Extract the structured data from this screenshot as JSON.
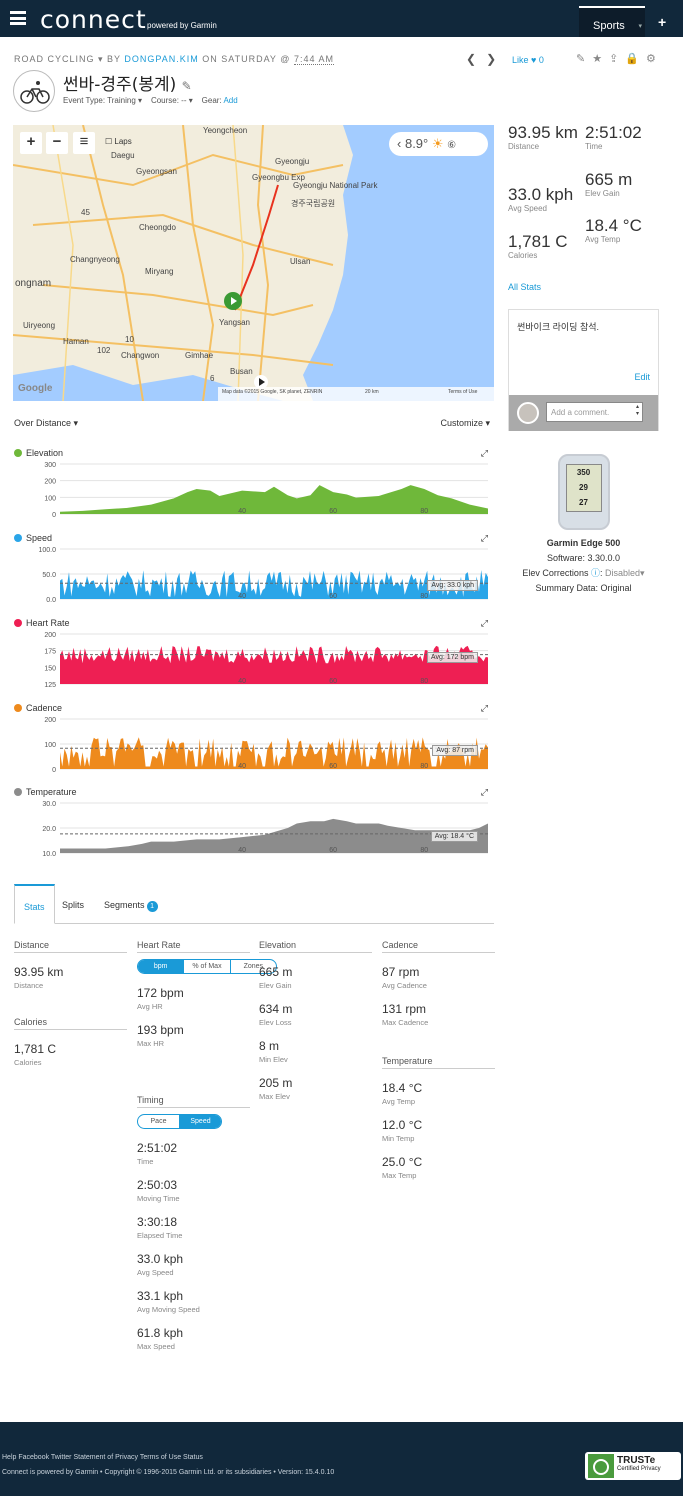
{
  "header": {
    "logo": "connect",
    "logo_sub": "powered by Garmin",
    "sports_tab": "Sports",
    "plus": "+"
  },
  "activity": {
    "type": "ROAD CYCLING",
    "by": "BY",
    "user": "DONGPAN.KIM",
    "on": "ON SATURDAY @",
    "time": "7:44 AM",
    "title": "썬바-경주(봉계)",
    "event_type_label": "Event Type: Training",
    "course_label": "Course: --",
    "gear_label": "Gear:",
    "gear_add": "Add",
    "like_label": "Like",
    "like_count": "0"
  },
  "map": {
    "weather_temp": "8.9°",
    "laps_label": "Laps",
    "attribution": "Map data ©2015 Google, SK planet, ZENRIN",
    "scale": "20 km",
    "terms": "Terms of Use",
    "google": "Google",
    "places": [
      "Yeongcheon",
      "Gyeongju",
      "Daegu",
      "Gyeongsan",
      "Gyeongju National Park",
      "경주국립공원",
      "Cheongdo",
      "Changnyeong",
      "Miryang",
      "Ulsan",
      "ongnam",
      "Yangsan",
      "Uiryeong",
      "Haman",
      "Changwon",
      "Gimhae",
      "Busan",
      "45",
      "10",
      "102",
      "6",
      "Gyeongbu Exp"
    ]
  },
  "summary": {
    "distance": {
      "value": "93.95 km",
      "label": "Distance"
    },
    "time": {
      "value": "2:51:02",
      "label": "Time"
    },
    "avg_speed": {
      "value": "33.0 kph",
      "label": "Avg Speed"
    },
    "elev_gain": {
      "value": "665 m",
      "label": "Elev Gain"
    },
    "calories": {
      "value": "1,781 C",
      "label": "Calories"
    },
    "avg_temp": {
      "value": "18.4 °C",
      "label": "Avg Temp"
    },
    "all_stats": "All Stats"
  },
  "comment": {
    "text": "썬바이크 라이딩 참석.",
    "edit": "Edit",
    "placeholder": "Add a comment."
  },
  "device": {
    "name": "Garmin Edge 500",
    "software": "Software: 3.30.0.0",
    "elev_corrections_label": "Elev Corrections",
    "elev_corrections_value": "Disabled",
    "summary_data": "Summary Data: Original",
    "screen_lines": [
      "350",
      "29",
      "27"
    ]
  },
  "charts_header": {
    "over": "Over Distance",
    "customize": "Customize"
  },
  "chart_data": [
    {
      "type": "area",
      "title": "Elevation",
      "color": "#6fb83a",
      "yticks": [
        "300",
        "200",
        "100",
        "0"
      ],
      "ylim": [
        0,
        320
      ],
      "xticks": [
        "40",
        "60",
        "80"
      ],
      "x_range": [
        0,
        94
      ],
      "x": [
        0,
        5,
        10,
        15,
        20,
        25,
        28,
        30,
        33,
        35,
        40,
        45,
        47,
        50,
        52,
        55,
        57,
        60,
        63,
        65,
        70,
        75,
        77,
        80,
        83,
        86,
        90,
        94
      ],
      "y": [
        15,
        20,
        30,
        40,
        60,
        100,
        140,
        160,
        150,
        115,
        150,
        140,
        175,
        120,
        100,
        120,
        185,
        140,
        125,
        105,
        115,
        160,
        185,
        160,
        120,
        100,
        60,
        35
      ]
    },
    {
      "type": "area",
      "title": "Speed",
      "color": "#2aa5e8",
      "yticks": [
        "100.0",
        "50.0",
        "0.0"
      ],
      "ylim": [
        0,
        105
      ],
      "xticks": [
        "40",
        "60",
        "80"
      ],
      "x_range": [
        0,
        94
      ],
      "avg_label": "Avg: 33.0 kph",
      "avg": 33.0
    },
    {
      "type": "area",
      "title": "Heart Rate",
      "color": "#ee1f53",
      "yticks": [
        "200",
        "175",
        "150",
        "125"
      ],
      "ylim": [
        125,
        205
      ],
      "xticks": [
        "40",
        "60",
        "80"
      ],
      "x_range": [
        0,
        94
      ],
      "avg_label": "Avg: 172 bpm",
      "avg": 172
    },
    {
      "type": "area",
      "title": "Cadence",
      "color": "#ee8a1d",
      "yticks": [
        "200",
        "100",
        "0"
      ],
      "ylim": [
        0,
        210
      ],
      "xticks": [
        "40",
        "60",
        "80"
      ],
      "x_range": [
        0,
        94
      ],
      "avg_label": "Avg: 87 rpm",
      "avg": 87
    },
    {
      "type": "area",
      "title": "Temperature",
      "color": "#8c8c8c",
      "yticks": [
        "30.0",
        "20.0",
        "10.0"
      ],
      "ylim": [
        10,
        32
      ],
      "xticks": [
        "40",
        "60",
        "80"
      ],
      "x_range": [
        0,
        94
      ],
      "avg_label": "Avg: 18.4 °C",
      "avg": 18.4,
      "x": [
        0,
        10,
        15,
        18,
        20,
        25,
        30,
        35,
        40,
        45,
        50,
        52,
        55,
        58,
        60,
        63,
        65,
        70,
        72,
        75,
        78,
        80,
        85,
        88,
        90,
        92,
        94
      ],
      "y": [
        12,
        12,
        13,
        14,
        15,
        15,
        16,
        16,
        17,
        18,
        21,
        23,
        24,
        24,
        25,
        24,
        23,
        23,
        22,
        21,
        20,
        20,
        20,
        20,
        20,
        21,
        23
      ]
    }
  ],
  "tabs": {
    "stats": "Stats",
    "splits": "Splits",
    "segments": "Segments",
    "segments_count": "1"
  },
  "stats": {
    "distance": {
      "header": "Distance",
      "items": [
        {
          "v": "93.95 km",
          "l": "Distance"
        }
      ]
    },
    "calories": {
      "header": "Calories",
      "items": [
        {
          "v": "1,781 C",
          "l": "Calories"
        }
      ]
    },
    "heart_rate": {
      "header": "Heart Rate",
      "toggle": [
        "bpm",
        "% of Max",
        "Zones"
      ],
      "items": [
        {
          "v": "172 bpm",
          "l": "Avg HR"
        },
        {
          "v": "193 bpm",
          "l": "Max HR"
        }
      ]
    },
    "timing": {
      "header": "Timing",
      "toggle": [
        "Pace",
        "Speed"
      ],
      "items": [
        {
          "v": "2:51:02",
          "l": "Time"
        },
        {
          "v": "2:50:03",
          "l": "Moving Time"
        },
        {
          "v": "3:30:18",
          "l": "Elapsed Time"
        },
        {
          "v": "33.0 kph",
          "l": "Avg Speed"
        },
        {
          "v": "33.1 kph",
          "l": "Avg Moving Speed"
        },
        {
          "v": "61.8 kph",
          "l": "Max Speed"
        }
      ]
    },
    "elevation": {
      "header": "Elevation",
      "items": [
        {
          "v": "665 m",
          "l": "Elev Gain"
        },
        {
          "v": "634 m",
          "l": "Elev Loss"
        },
        {
          "v": "8 m",
          "l": "Min Elev"
        },
        {
          "v": "205 m",
          "l": "Max Elev"
        }
      ]
    },
    "cadence": {
      "header": "Cadence",
      "items": [
        {
          "v": "87 rpm",
          "l": "Avg Cadence"
        },
        {
          "v": "131 rpm",
          "l": "Max Cadence"
        }
      ]
    },
    "temperature": {
      "header": "Temperature",
      "items": [
        {
          "v": "18.4 °C",
          "l": "Avg Temp"
        },
        {
          "v": "12.0 °C",
          "l": "Min Temp"
        },
        {
          "v": "25.0 °C",
          "l": "Max Temp"
        }
      ]
    }
  },
  "footer": {
    "links": "Help Facebook Twitter Statement of Privacy Terms of Use Status",
    "copyright": "Connect is powered by Garmin • Copyright © 1996-2015 Garmin Ltd. or its subsidiaries • Version: 15.4.0.10",
    "truste": "TRUSTe",
    "truste_sub": "Certified Privacy"
  }
}
